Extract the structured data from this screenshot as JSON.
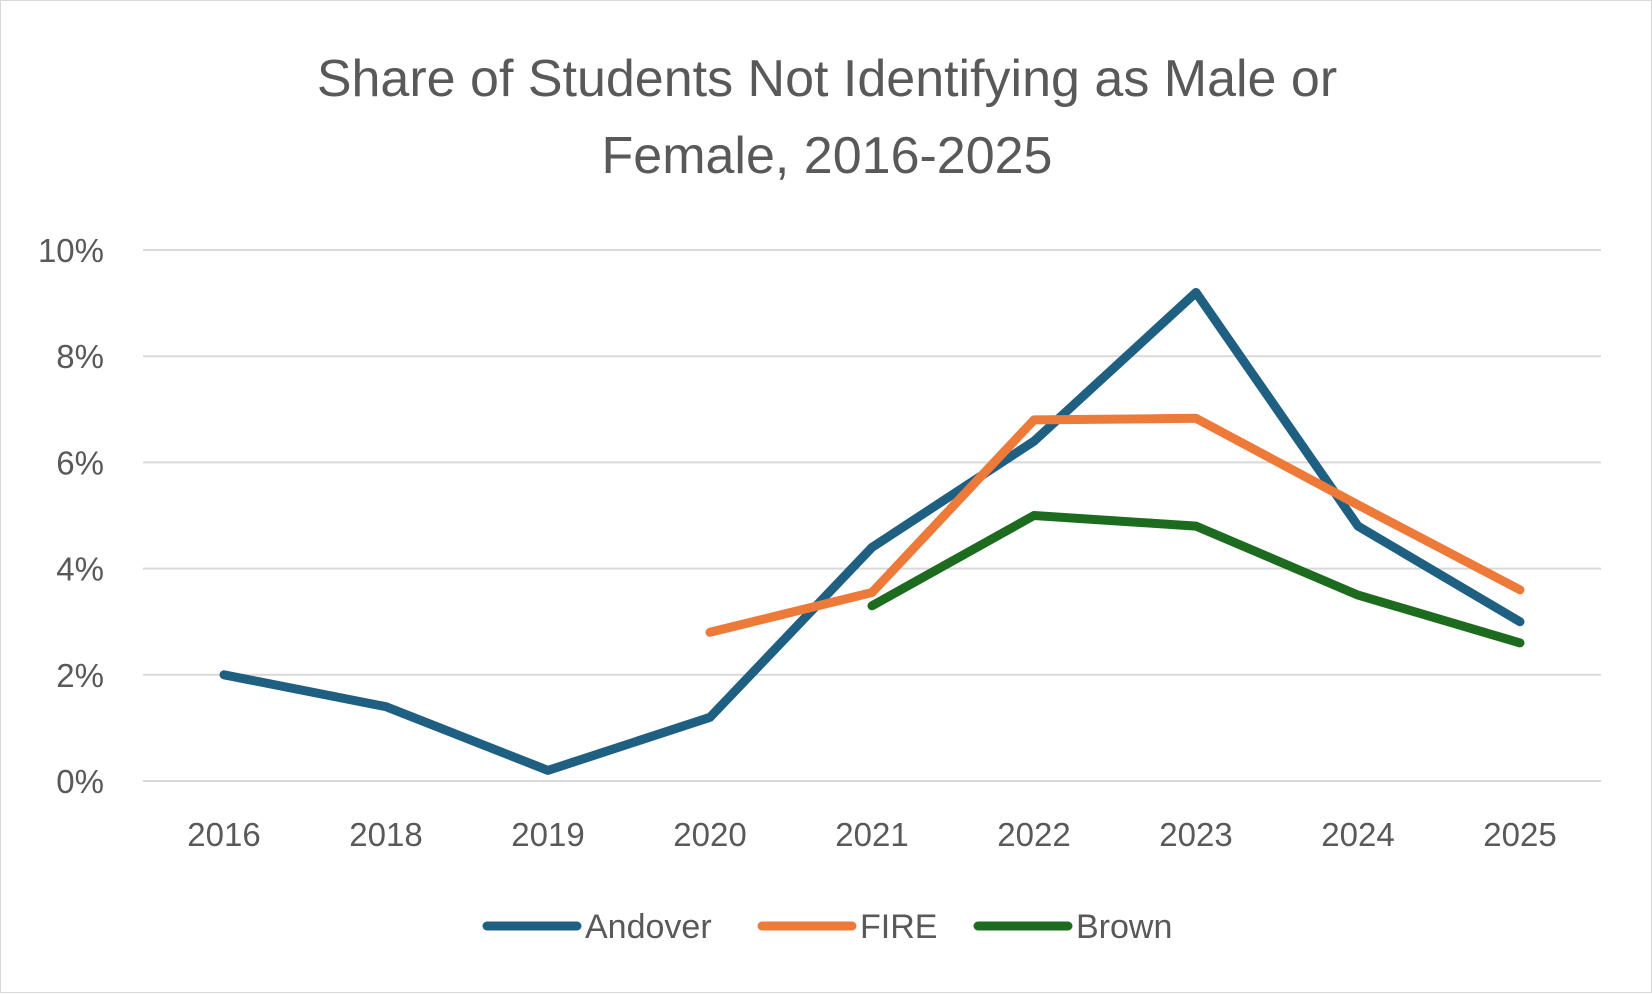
{
  "chart_data": {
    "type": "line",
    "title_lines": [
      "Share of Students Not Identifying as Male or",
      "Female, 2016-2025"
    ],
    "categories": [
      "2016",
      "2018",
      "2019",
      "2020",
      "2021",
      "2022",
      "2023",
      "2024",
      "2025"
    ],
    "y_ticks": [
      "0%",
      "2%",
      "4%",
      "6%",
      "8%",
      "10%"
    ],
    "ylim": [
      0,
      10
    ],
    "y_unit": "%",
    "grid": true,
    "legend_position": "bottom",
    "series": [
      {
        "name": "Andover",
        "color": "#1f5f82",
        "values": [
          2.0,
          1.4,
          0.2,
          1.2,
          4.4,
          6.4,
          9.2,
          4.8,
          3.0
        ]
      },
      {
        "name": "FIRE",
        "color": "#ee7a3a",
        "values": [
          null,
          null,
          null,
          2.8,
          3.55,
          6.8,
          6.83,
          5.2,
          3.6
        ]
      },
      {
        "name": "Brown",
        "color": "#1d6b1f",
        "values": [
          null,
          null,
          null,
          null,
          3.3,
          5.0,
          4.8,
          3.5,
          2.6
        ]
      }
    ]
  }
}
